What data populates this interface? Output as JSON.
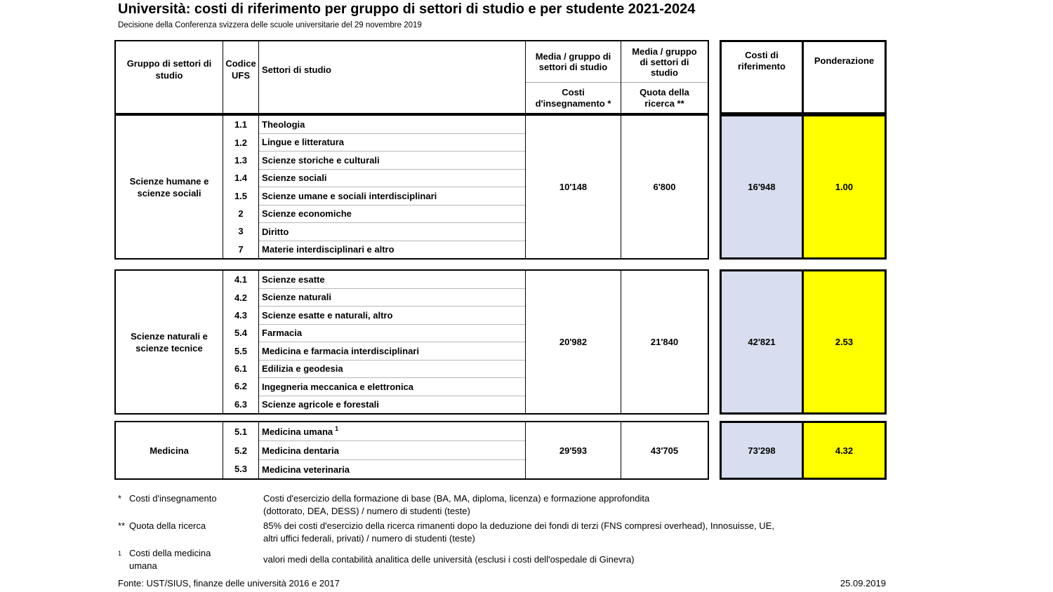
{
  "title": "Università: costi di riferimento per gruppo di settori di studio e per studente 2021-2024",
  "subtitle": "Decisione della Conferenza svizzera delle scuole universitarie del 29 novembre 2019",
  "colors": {
    "reference_bg": "#D8DEF0",
    "weighting_bg": "#FFFF00"
  },
  "table": {
    "header": {
      "group_col": "Gruppo di settori di\nstudio",
      "code_col": "Codice\nUFS",
      "sectors_col": "Settori di studio",
      "teaching_col_top": "Media / gruppo di\nsettori di studio",
      "teaching_col_sub": "Costi\nd'insegnamento *",
      "research_col_top": "Media / gruppo\ndi settori di\nstudio",
      "research_col_sub": "Quota della\nricerca **",
      "reference_col": "Costi di\nriferimento",
      "weighting_col": "Ponderazione"
    },
    "groups": [
      {
        "name": "Scienze humane e\nscienze sociali",
        "sectors": [
          {
            "code": "1.1",
            "label": "Theologia"
          },
          {
            "code": "1.2",
            "label": "Lingue e litteratura"
          },
          {
            "code": "1.3",
            "label": "Scienze storiche e culturali"
          },
          {
            "code": "1.4",
            "label": "Scienze sociali"
          },
          {
            "code": "1.5",
            "label": "Scienze umane e sociali interdisciplinari"
          },
          {
            "code": "2",
            "label": "Scienze economiche"
          },
          {
            "code": "3",
            "label": "Diritto"
          },
          {
            "code": "7",
            "label": "Materie interdisciplinari e altro"
          }
        ],
        "teaching_costs": "10'148",
        "research_share": "6'800",
        "reference_costs": "16'948",
        "weighting": "1.00"
      },
      {
        "name": "Scienze naturali e\nscienze tecnice",
        "sectors": [
          {
            "code": "4.1",
            "label": "Scienze esatte"
          },
          {
            "code": "4.2",
            "label": "Scienze naturali"
          },
          {
            "code": "4.3",
            "label": "Scienze esatte e naturali, altro"
          },
          {
            "code": "5.4",
            "label": "Farmacia"
          },
          {
            "code": "5.5",
            "label": "Medicina e farmacia interdisciplinari"
          },
          {
            "code": "6.1",
            "label": "Edilizia e geodesia"
          },
          {
            "code": "6.2",
            "label": "Ingegneria meccanica e elettronica"
          },
          {
            "code": "6.3",
            "label": "Scienze agricole e forestali"
          }
        ],
        "teaching_costs": "20'982",
        "research_share": "21'840",
        "reference_costs": "42'821",
        "weighting": "2.53"
      },
      {
        "name": "Medicina",
        "sectors": [
          {
            "code": "5.1",
            "label": "Medicina umana",
            "sup": "1"
          },
          {
            "code": "5.2",
            "label": "Medicina dentaria"
          },
          {
            "code": "5.3",
            "label": "Medicina veterinaria"
          }
        ],
        "teaching_costs": "29'593",
        "research_share": "43'705",
        "reference_costs": "73'298",
        "weighting": "4.32"
      }
    ]
  },
  "footnotes": [
    {
      "marker": "*",
      "label": "Costi d'insegnamento",
      "desc": "Costi d'esercizio della formazione di base (BA, MA, diploma, licenza) e formazione approfondita\n(dottorato, DEA, DESS) / numero di studenti (teste)"
    },
    {
      "marker": "**",
      "label": "Quota della ricerca",
      "desc": "85% dei costi d'esercizio della ricerca rimanenti dopo la deduzione dei fondi di terzi (FNS compresi overhead), Innosuisse, UE,\naltri uffici federali, privati) / numero di studenti (teste)"
    },
    {
      "marker": "1",
      "marker_sup": true,
      "label": "Costi della medicina\numana",
      "desc": "valori medi della contabilità analitica delle università (esclusi i costi dell'ospedale di Ginevra)"
    }
  ],
  "source": "Fonte: UST/SIUS, finanze delle università 2016 e 2017",
  "date": "25.09.2019"
}
